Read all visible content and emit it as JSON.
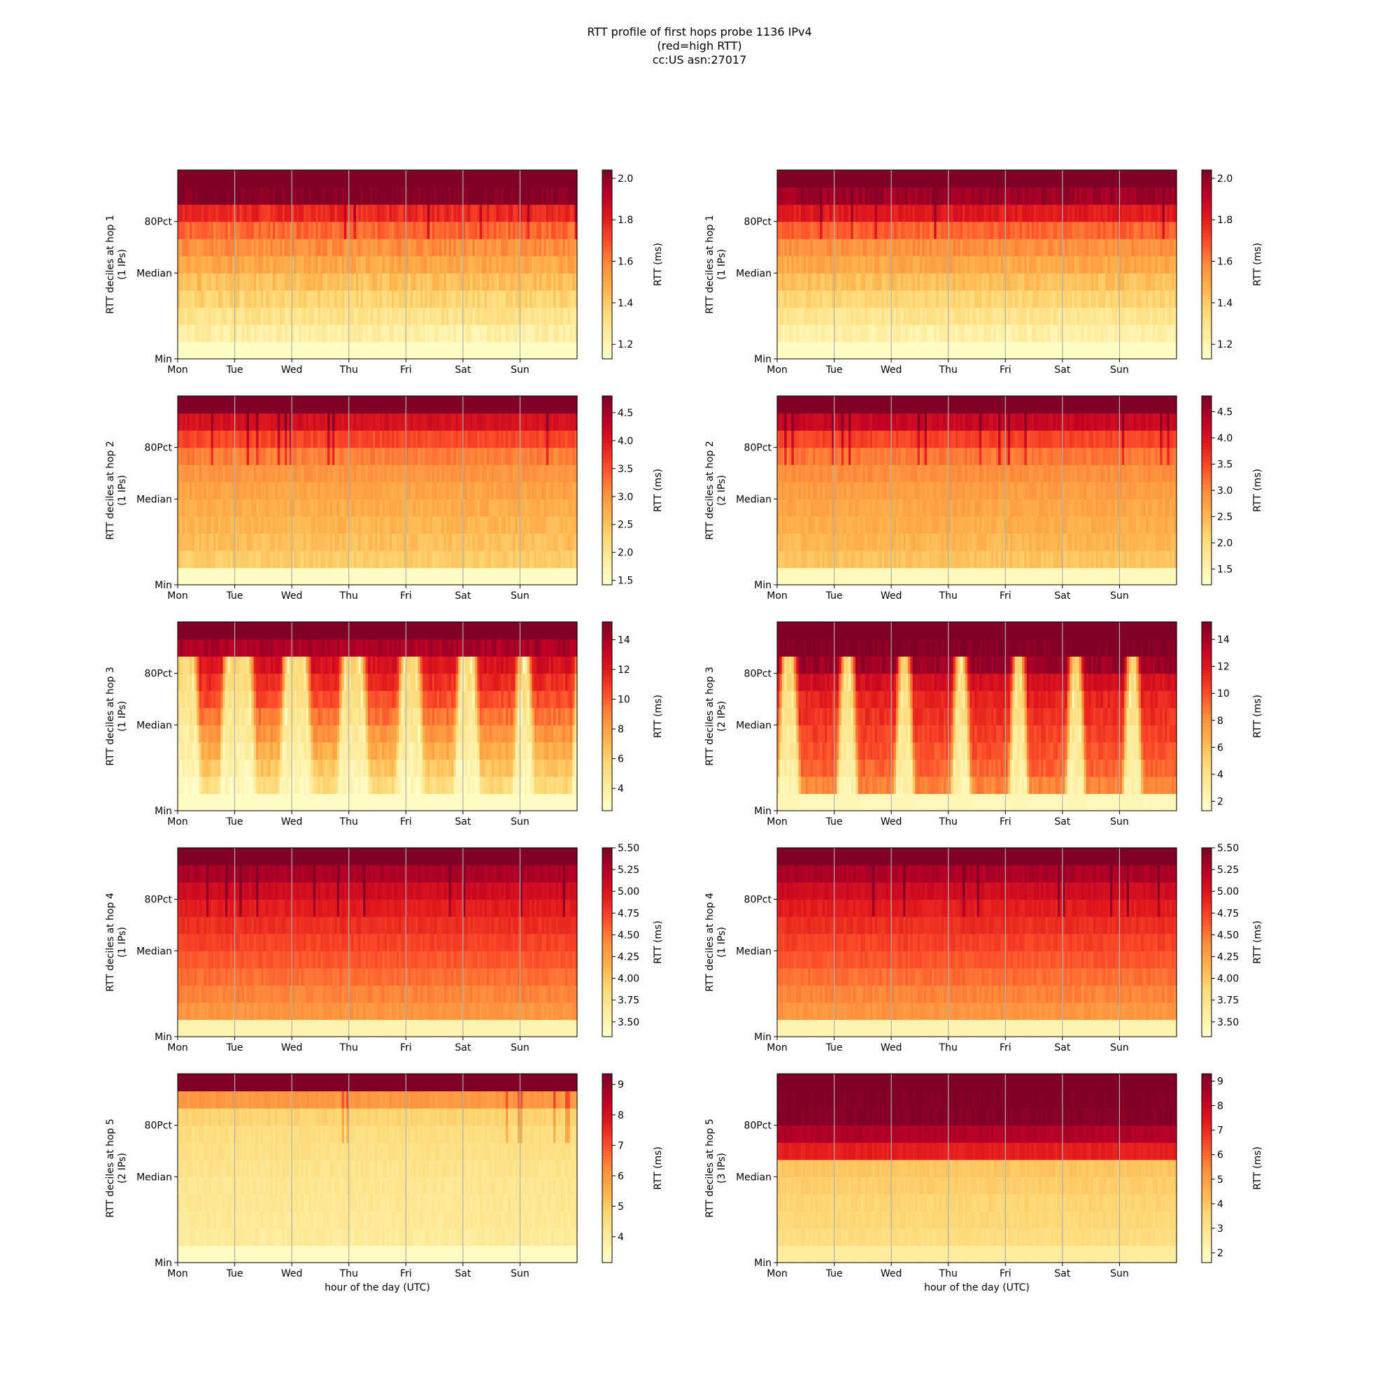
{
  "figure": {
    "title_lines": [
      "RTT profile of first hops probe 1136 IPv4",
      "(red=high RTT)",
      "cc:US asn:27017"
    ],
    "xlabel": "hour of the day (UTC)",
    "colorbar_label": "RTT (ms)",
    "colormap": "YlOrRd",
    "colormap_stops": [
      "#ffffcc",
      "#ffeda0",
      "#fed976",
      "#feb24c",
      "#fd8d3c",
      "#fc4e2a",
      "#e31a1c",
      "#bd0026",
      "#800026"
    ]
  },
  "chart_data": [
    {
      "type": "heatmap",
      "ylabel_lines": [
        "RTT deciles at hop 1",
        "(1 IPs)"
      ],
      "x_ticks": [
        "Mon",
        "Tue",
        "Wed",
        "Thu",
        "Fri",
        "Sat",
        "Sun"
      ],
      "y_ticks": [
        "Min",
        "Median",
        "80Pct"
      ],
      "cbar_range": [
        1.13,
        2.04
      ],
      "cbar_ticks": [
        "1.2",
        "1.4",
        "1.6",
        "1.8",
        "2.0"
      ],
      "pattern": "gradient",
      "rows": [
        1.15,
        1.23,
        1.3,
        1.37,
        1.43,
        1.5,
        1.57,
        1.65,
        1.78,
        2.04,
        2.04
      ],
      "noise": 0.05,
      "spikes": 0.04
    },
    {
      "type": "heatmap",
      "ylabel_lines": [
        "RTT deciles at hop 1",
        "(1 IPs)"
      ],
      "x_ticks": [
        "Mon",
        "Tue",
        "Wed",
        "Thu",
        "Fri",
        "Sat",
        "Sun"
      ],
      "y_ticks": [
        "Min",
        "Median",
        "80Pct"
      ],
      "cbar_range": [
        1.13,
        2.04
      ],
      "cbar_ticks": [
        "1.2",
        "1.4",
        "1.6",
        "1.8",
        "2.0"
      ],
      "pattern": "gradient",
      "rows": [
        1.15,
        1.22,
        1.29,
        1.36,
        1.43,
        1.5,
        1.57,
        1.66,
        1.82,
        1.98,
        2.04
      ],
      "noise": 0.04,
      "spikes": 0.02
    },
    {
      "type": "heatmap",
      "ylabel_lines": [
        "RTT deciles at hop 2",
        "(1 IPs)"
      ],
      "x_ticks": [
        "Mon",
        "Tue",
        "Wed",
        "Thu",
        "Fri",
        "Sat",
        "Sun"
      ],
      "y_ticks": [
        "Min",
        "Median",
        "80Pct"
      ],
      "cbar_range": [
        1.42,
        4.8
      ],
      "cbar_ticks": [
        "1.5",
        "2.0",
        "2.5",
        "3.0",
        "3.5",
        "4.0",
        "4.5"
      ],
      "pattern": "gradient",
      "rows": [
        1.5,
        2.4,
        2.55,
        2.65,
        2.75,
        2.85,
        3.0,
        3.2,
        3.6,
        4.1,
        4.8
      ],
      "noise": 0.12,
      "spikes": 0.06
    },
    {
      "type": "heatmap",
      "ylabel_lines": [
        "RTT deciles at hop 2",
        "(2 IPs)"
      ],
      "x_ticks": [
        "Mon",
        "Tue",
        "Wed",
        "Thu",
        "Fri",
        "Sat",
        "Sun"
      ],
      "y_ticks": [
        "Min",
        "Median",
        "80Pct"
      ],
      "cbar_range": [
        1.2,
        4.8
      ],
      "cbar_ticks": [
        "1.5",
        "2.0",
        "2.5",
        "3.0",
        "3.5",
        "4.0",
        "4.5"
      ],
      "pattern": "gradient",
      "rows": [
        1.35,
        2.35,
        2.5,
        2.6,
        2.7,
        2.8,
        2.95,
        3.15,
        3.55,
        4.2,
        4.8
      ],
      "noise": 0.12,
      "spikes": 0.05
    },
    {
      "type": "heatmap",
      "ylabel_lines": [
        "RTT deciles at hop 3",
        "(1 IPs)"
      ],
      "x_ticks": [
        "Mon",
        "Tue",
        "Wed",
        "Thu",
        "Fri",
        "Sat",
        "Sun"
      ],
      "y_ticks": [
        "Min",
        "Median",
        "80Pct"
      ],
      "cbar_range": [
        2.5,
        15.2
      ],
      "cbar_ticks": [
        "4",
        "6",
        "8",
        "10",
        "12",
        "14"
      ],
      "pattern": "diurnal",
      "rows": [
        2.7,
        5.5,
        6.5,
        7.5,
        8.5,
        9.5,
        10.5,
        11.5,
        12.5,
        14.0,
        15.2
      ],
      "low": 2.8,
      "widths": [
        0.62,
        0.55,
        0.52,
        0.48,
        0.44,
        0.38,
        0.3
      ],
      "centers": [
        0.05,
        0.06,
        0.06,
        0.07,
        0.06,
        0.07,
        0.06
      ],
      "noise": 0.6,
      "spikes": 0.0
    },
    {
      "type": "heatmap",
      "ylabel_lines": [
        "RTT deciles at hop 3",
        "(2 IPs)"
      ],
      "x_ticks": [
        "Mon",
        "Tue",
        "Wed",
        "Thu",
        "Fri",
        "Sat",
        "Sun"
      ],
      "y_ticks": [
        "Min",
        "Median",
        "80Pct"
      ],
      "cbar_range": [
        1.3,
        15.3
      ],
      "cbar_ticks": [
        "2",
        "4",
        "6",
        "8",
        "10",
        "12",
        "14"
      ],
      "pattern": "diurnal",
      "rows": [
        2.0,
        8.5,
        9.5,
        10.0,
        10.5,
        11.0,
        11.5,
        12.5,
        14.5,
        15.3,
        15.3
      ],
      "low": 2.2,
      "widths": [
        0.35,
        0.32,
        0.3,
        0.3,
        0.3,
        0.3,
        0.3
      ],
      "centers": [
        0.18,
        0.21,
        0.21,
        0.2,
        0.21,
        0.21,
        0.21
      ],
      "noise": 0.6,
      "spikes": 0.0
    },
    {
      "type": "heatmap",
      "ylabel_lines": [
        "RTT deciles at hop 4",
        "(1 IPs)"
      ],
      "x_ticks": [
        "Mon",
        "Tue",
        "Wed",
        "Thu",
        "Fri",
        "Sat",
        "Sun"
      ],
      "y_ticks": [
        "Min",
        "Median",
        "80Pct"
      ],
      "cbar_range": [
        3.33,
        5.5
      ],
      "cbar_ticks": [
        "3.50",
        "3.75",
        "4.00",
        "4.25",
        "4.50",
        "4.75",
        "5.00",
        "5.25",
        "5.50"
      ],
      "pattern": "gradient",
      "rows": [
        3.5,
        4.35,
        4.45,
        4.55,
        4.65,
        4.75,
        4.85,
        4.95,
        5.1,
        5.3,
        5.5
      ],
      "noise": 0.06,
      "spikes": 0.05
    },
    {
      "type": "heatmap",
      "ylabel_lines": [
        "RTT deciles at hop 4",
        "(1 IPs)"
      ],
      "x_ticks": [
        "Mon",
        "Tue",
        "Wed",
        "Thu",
        "Fri",
        "Sat",
        "Sun"
      ],
      "y_ticks": [
        "Min",
        "Median",
        "80Pct"
      ],
      "cbar_range": [
        3.33,
        5.5
      ],
      "cbar_ticks": [
        "3.50",
        "3.75",
        "4.00",
        "4.25",
        "4.50",
        "4.75",
        "5.00",
        "5.25",
        "5.50"
      ],
      "pattern": "gradient",
      "rows": [
        3.5,
        4.35,
        4.45,
        4.55,
        4.65,
        4.75,
        4.85,
        4.95,
        5.1,
        5.3,
        5.5
      ],
      "noise": 0.06,
      "spikes": 0.05
    },
    {
      "type": "heatmap",
      "ylabel_lines": [
        "RTT deciles at hop 5",
        "(2 IPs)"
      ],
      "x_ticks": [
        "Mon",
        "Tue",
        "Wed",
        "Thu",
        "Fri",
        "Sat",
        "Sun"
      ],
      "y_ticks": [
        "Min",
        "Median",
        "80Pct"
      ],
      "cbar_range": [
        3.15,
        9.35
      ],
      "cbar_ticks": [
        "4",
        "5",
        "6",
        "7",
        "8",
        "9"
      ],
      "pattern": "gradient",
      "rows": [
        3.3,
        4.0,
        4.1,
        4.15,
        4.2,
        4.3,
        4.4,
        4.5,
        4.8,
        6.0,
        9.35
      ],
      "noise": 0.15,
      "spikes": 0.08
    },
    {
      "type": "heatmap",
      "ylabel_lines": [
        "RTT deciles at hop 5",
        "(3 IPs)"
      ],
      "x_ticks": [
        "Mon",
        "Tue",
        "Wed",
        "Thu",
        "Fri",
        "Sat",
        "Sun"
      ],
      "y_ticks": [
        "Min",
        "Median",
        "80Pct"
      ],
      "cbar_range": [
        1.6,
        9.3
      ],
      "cbar_ticks": [
        "2",
        "3",
        "4",
        "5",
        "6",
        "7",
        "8",
        "9"
      ],
      "pattern": "gradient",
      "rows": [
        2.6,
        3.3,
        3.5,
        3.6,
        3.8,
        4.0,
        7.3,
        8.5,
        9.2,
        9.3,
        9.3
      ],
      "noise": 0.15,
      "spikes": 0.0
    }
  ]
}
